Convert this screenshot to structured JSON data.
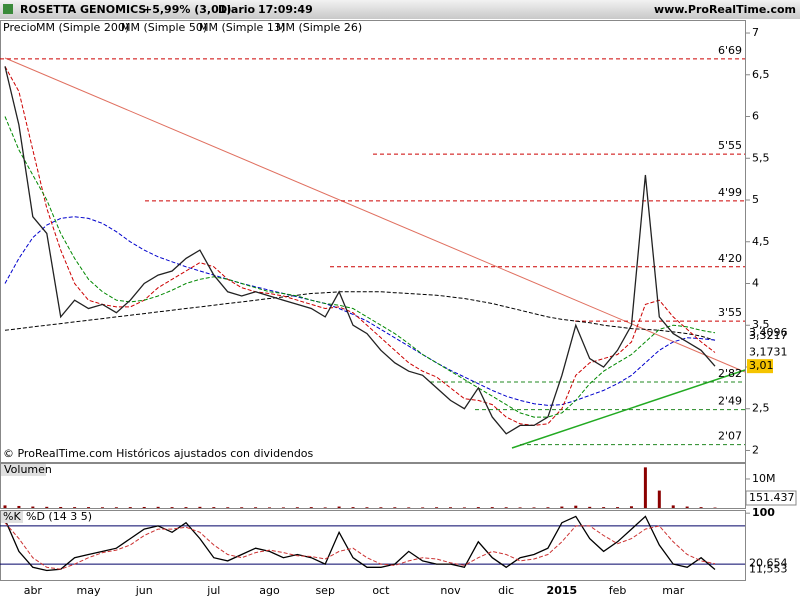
{
  "header": {
    "name": "ROSETTA GENOMICS",
    "change": "+5,99% (3,01)",
    "period": "Diario",
    "time": "17:09:49",
    "site": "www.ProRealTime.com"
  },
  "chart_data": [
    {
      "type": "line",
      "title": "Precio",
      "footer": "© ProRealTime.com Históricos ajustados con dividendos",
      "categories": [
        null,
        null,
        "abr",
        null,
        null,
        null,
        "may",
        null,
        null,
        null,
        "jun",
        null,
        null,
        null,
        null,
        "jul",
        null,
        null,
        null,
        "ago",
        null,
        null,
        null,
        "sep",
        null,
        null,
        null,
        "oct",
        null,
        null,
        null,
        null,
        "nov",
        null,
        null,
        null,
        "dic",
        null,
        null,
        null,
        "2015",
        null,
        null,
        null,
        "feb",
        null,
        null,
        null,
        "mar",
        null,
        null,
        null
      ],
      "ylim": [
        1.862,
        7.156
      ],
      "yticks": [
        {
          "value": 7,
          "label": "7"
        },
        {
          "value": 6.5,
          "label": "6,5"
        },
        {
          "value": 6,
          "label": "6"
        },
        {
          "value": 5.5,
          "label": "5,5"
        },
        {
          "value": 5,
          "label": "5"
        },
        {
          "value": 4.5,
          "label": "4,5"
        },
        {
          "value": 4,
          "label": "4"
        },
        {
          "value": 3.5,
          "label": "3,5"
        },
        {
          "value": 3,
          "label": "3"
        },
        {
          "value": 2.5,
          "label": "2,5"
        },
        {
          "value": 2,
          "label": "2"
        }
      ],
      "levels": [
        {
          "value": 6.69,
          "label": "6'69"
        },
        {
          "value": 5.55,
          "label": "5'55"
        },
        {
          "value": 4.99,
          "label": "4'99"
        },
        {
          "value": 4.2,
          "label": "4'20"
        },
        {
          "value": 3.55,
          "label": "3'55"
        },
        {
          "value": 2.82,
          "label": "2'82"
        },
        {
          "value": 2.49,
          "label": "2'49"
        },
        {
          "value": 2.07,
          "label": "2'07"
        }
      ],
      "series": [
        {
          "name": "MM (Simple 200)",
          "color": "#000000",
          "dash": true,
          "values": [
            3.44,
            3.46,
            3.48,
            3.5,
            3.52,
            3.54,
            3.56,
            3.58,
            3.6,
            3.62,
            3.64,
            3.66,
            3.68,
            3.7,
            3.72,
            3.74,
            3.76,
            3.78,
            3.8,
            3.82,
            3.84,
            3.86,
            3.88,
            3.89,
            3.9,
            3.9,
            3.9,
            3.9,
            3.89,
            3.88,
            3.87,
            3.86,
            3.84,
            3.82,
            3.79,
            3.76,
            3.72,
            3.68,
            3.64,
            3.6,
            3.57,
            3.55,
            3.53,
            3.5,
            3.48,
            3.46,
            3.45,
            3.44,
            3.42,
            3.4,
            3.37,
            3.32
          ]
        },
        {
          "name": "MM (Simple 50)",
          "color": "#0000cc",
          "dash": true,
          "last_label": "3,3217",
          "values": [
            4.0,
            4.3,
            4.55,
            4.7,
            4.78,
            4.8,
            4.78,
            4.72,
            4.62,
            4.5,
            4.4,
            4.32,
            4.26,
            4.2,
            4.15,
            4.1,
            4.05,
            4.0,
            3.96,
            3.92,
            3.88,
            3.84,
            3.8,
            3.76,
            3.7,
            3.63,
            3.55,
            3.45,
            3.35,
            3.25,
            3.15,
            3.05,
            2.96,
            2.88,
            2.8,
            2.72,
            2.65,
            2.6,
            2.56,
            2.54,
            2.55,
            2.6,
            2.66,
            2.72,
            2.8,
            2.9,
            3.05,
            3.2,
            3.3,
            3.35,
            3.34,
            3.3217
          ]
        },
        {
          "name": "MM (Simple 13)",
          "color": "#cc0000",
          "dash": true,
          "last_label": "3,1731",
          "values": [
            6.6,
            6.3,
            5.6,
            4.9,
            4.4,
            4.0,
            3.8,
            3.75,
            3.72,
            3.72,
            3.8,
            3.95,
            4.05,
            4.15,
            4.25,
            4.2,
            4.05,
            3.95,
            3.9,
            3.88,
            3.85,
            3.8,
            3.75,
            3.7,
            3.72,
            3.65,
            3.5,
            3.35,
            3.2,
            3.05,
            2.95,
            2.88,
            2.75,
            2.62,
            2.6,
            2.55,
            2.4,
            2.32,
            2.3,
            2.32,
            2.5,
            2.9,
            3.05,
            3.1,
            3.15,
            3.3,
            3.75,
            3.8,
            3.6,
            3.45,
            3.3,
            3.1731
          ]
        },
        {
          "name": "MM (Simple 26)",
          "color": "#008800",
          "dash": true,
          "last_label": "3,4096",
          "values": [
            6.0,
            5.6,
            5.3,
            5.0,
            4.6,
            4.3,
            4.05,
            3.9,
            3.8,
            3.78,
            3.8,
            3.85,
            3.92,
            4.0,
            4.05,
            4.08,
            4.05,
            4.0,
            3.95,
            3.9,
            3.88,
            3.85,
            3.8,
            3.76,
            3.74,
            3.7,
            3.6,
            3.5,
            3.4,
            3.28,
            3.15,
            3.05,
            2.95,
            2.85,
            2.75,
            2.65,
            2.55,
            2.45,
            2.4,
            2.4,
            2.45,
            2.6,
            2.8,
            2.95,
            3.05,
            3.15,
            3.3,
            3.45,
            3.5,
            3.48,
            3.44,
            3.4096
          ]
        },
        {
          "name": "Precio",
          "color": "#222222",
          "last_label": "3,01",
          "values": [
            6.6,
            5.9,
            4.8,
            4.6,
            3.6,
            3.8,
            3.7,
            3.75,
            3.65,
            3.8,
            4.0,
            4.1,
            4.15,
            4.3,
            4.4,
            4.1,
            3.9,
            3.85,
            3.9,
            3.85,
            3.8,
            3.75,
            3.7,
            3.6,
            3.9,
            3.5,
            3.4,
            3.2,
            3.05,
            2.95,
            2.9,
            2.75,
            2.6,
            2.5,
            2.75,
            2.4,
            2.2,
            2.3,
            2.3,
            2.4,
            2.9,
            3.5,
            3.1,
            3.0,
            3.2,
            3.5,
            5.3,
            3.6,
            3.4,
            3.3,
            3.2,
            3.01
          ]
        }
      ]
    },
    {
      "type": "bar",
      "title": "Volumen",
      "ylim": [
        0,
        15500000
      ],
      "yticks": [
        {
          "value": 10000000,
          "label": "10M"
        }
      ],
      "color": "#8b0000",
      "last_label": "151.437",
      "values": [
        900000,
        700000,
        500000,
        400000,
        350000,
        300000,
        300000,
        250000,
        250000,
        300000,
        350000,
        400000,
        300000,
        300000,
        400000,
        300000,
        250000,
        250000,
        250000,
        200000,
        200000,
        250000,
        300000,
        200000,
        500000,
        300000,
        250000,
        250000,
        250000,
        200000,
        200000,
        250000,
        250000,
        200000,
        300000,
        300000,
        250000,
        200000,
        200000,
        250000,
        500000,
        800000,
        400000,
        300000,
        300000,
        600000,
        14000000,
        6000000,
        900000,
        500000,
        300000,
        151437
      ]
    },
    {
      "type": "line",
      "title": "%K",
      "ylim": [
        -5,
        105
      ],
      "yticks": [
        100
      ],
      "bands": [
        80,
        20
      ],
      "series": [
        {
          "name": "%K",
          "color": "#000000",
          "last_label": "11,553",
          "values": [
            90,
            40,
            15,
            10,
            12,
            30,
            35,
            40,
            45,
            60,
            75,
            80,
            70,
            85,
            60,
            30,
            25,
            35,
            45,
            40,
            30,
            35,
            30,
            20,
            70,
            30,
            15,
            15,
            20,
            40,
            25,
            20,
            20,
            15,
            55,
            30,
            15,
            30,
            35,
            45,
            85,
            95,
            60,
            40,
            55,
            75,
            95,
            50,
            20,
            15,
            30,
            11.553
          ]
        },
        {
          "name": "%D (14 3 5)",
          "color": "#cc3333",
          "dash": true,
          "last_label": "20,654",
          "values": [
            85,
            60,
            30,
            15,
            12,
            20,
            30,
            38,
            42,
            50,
            65,
            75,
            75,
            78,
            70,
            50,
            35,
            30,
            38,
            42,
            38,
            33,
            32,
            28,
            40,
            45,
            30,
            20,
            18,
            25,
            30,
            28,
            22,
            18,
            30,
            40,
            35,
            25,
            28,
            35,
            55,
            80,
            80,
            65,
            52,
            60,
            75,
            80,
            55,
            35,
            25,
            20.654
          ]
        }
      ]
    }
  ]
}
